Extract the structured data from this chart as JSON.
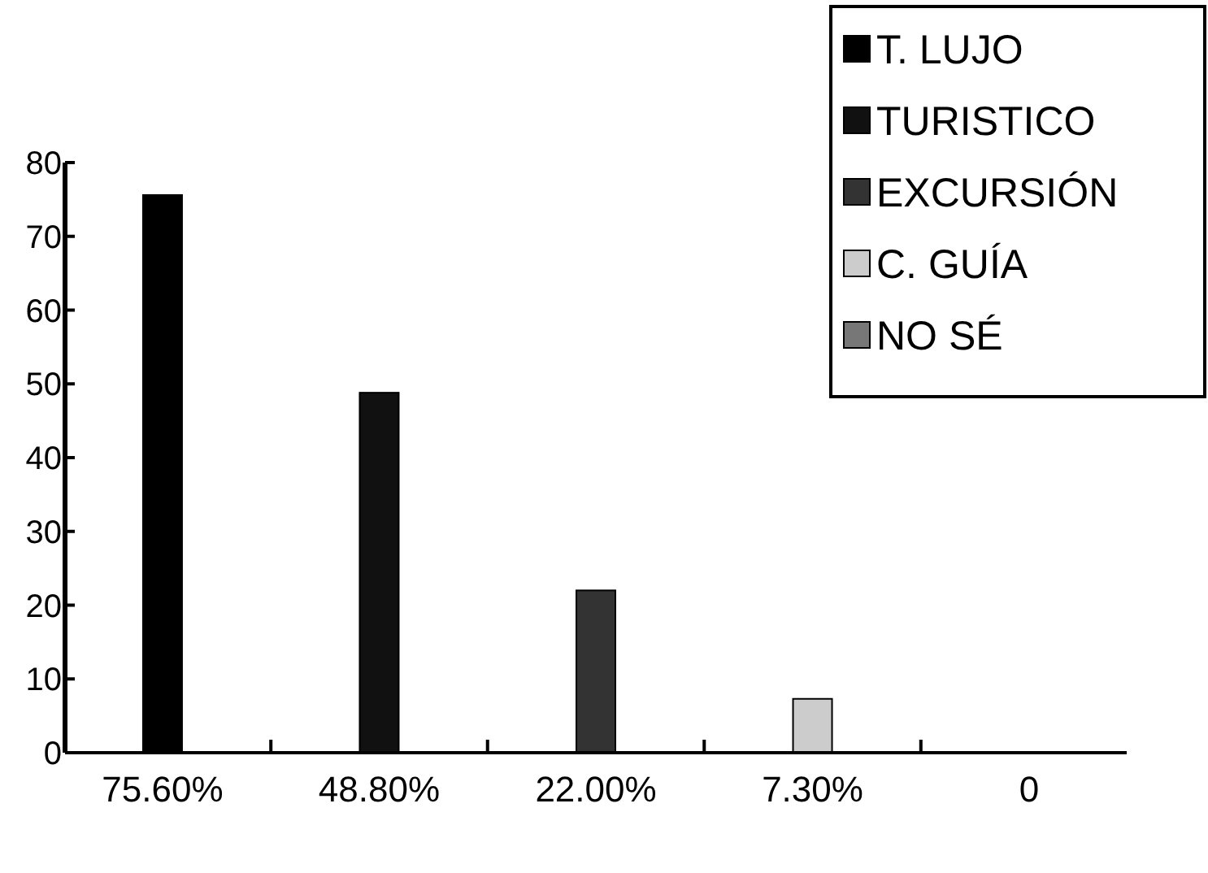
{
  "chart_data": {
    "type": "bar",
    "categories": [
      "75.60%",
      "48.80%",
      "22.00%",
      "7.30%",
      "0"
    ],
    "series": [
      {
        "name": "T. LUJO",
        "color": "#000000",
        "values": [
          75.6,
          null,
          null,
          null,
          null
        ]
      },
      {
        "name": "TURISTICO",
        "color": "#111111",
        "values": [
          null,
          48.8,
          null,
          null,
          null
        ]
      },
      {
        "name": "EXCURSIÓN",
        "color": "#333333",
        "values": [
          null,
          null,
          22,
          null,
          null
        ]
      },
      {
        "name": "C. GUÍA",
        "color": "#cccccc",
        "values": [
          null,
          null,
          null,
          7.3,
          null
        ]
      },
      {
        "name": "NO SÉ",
        "color": "#777777",
        "values": [
          null,
          null,
          null,
          null,
          0
        ]
      }
    ],
    "ylim": [
      0,
      80
    ],
    "yticks": [
      0,
      10,
      20,
      30,
      40,
      50,
      60,
      70,
      80
    ],
    "grid": false,
    "legend": "top right"
  }
}
